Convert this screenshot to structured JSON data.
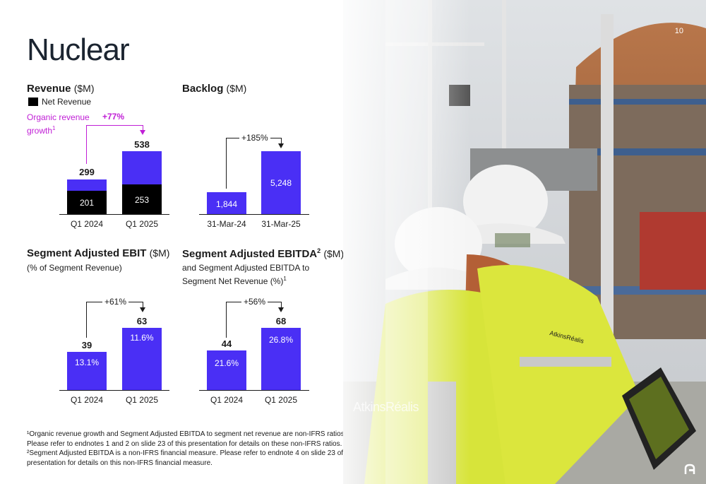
{
  "page": {
    "title": "Nuclear",
    "page_number": "10"
  },
  "revenue": {
    "heading": "Revenue",
    "unit": "($M)",
    "legend": "Net Revenue",
    "organic_label_1": "Organic revenue",
    "organic_label_2": "growth",
    "organic_sup": "1",
    "growth": "+77%",
    "categories": [
      "Q1 2024",
      "Q1 2025"
    ],
    "totals": [
      "299",
      "538"
    ],
    "net": [
      "201",
      "253"
    ]
  },
  "backlog": {
    "heading": "Backlog",
    "unit": "($M)",
    "growth": "+185%",
    "categories": [
      "31-Mar-24",
      "31-Mar-25"
    ],
    "values": [
      "1,844",
      "5,248"
    ]
  },
  "ebit": {
    "heading": "Segment Adjusted EBIT",
    "unit": "($M)",
    "subtitle": "(% of Segment Revenue)",
    "growth": "+61%",
    "categories": [
      "Q1 2024",
      "Q1 2025"
    ],
    "values": [
      "39",
      "63"
    ],
    "margins": [
      "13.1%",
      "11.6%"
    ]
  },
  "ebitda": {
    "heading": "Segment Adjusted EBITDA",
    "sup": "2",
    "unit": "($M)",
    "subtitle_1": "and Segment Adjusted EBITDA to",
    "subtitle_2": "Segment Net Revenue (%)",
    "subtitle_sup": "1",
    "growth": "+56%",
    "categories": [
      "Q1 2024",
      "Q1 2025"
    ],
    "values": [
      "44",
      "68"
    ],
    "margins": [
      "21.6%",
      "26.8%"
    ]
  },
  "chart_data": [
    {
      "type": "bar",
      "title": "Revenue ($M)",
      "categories": [
        "Q1 2024",
        "Q1 2025"
      ],
      "series": [
        {
          "name": "Net Revenue",
          "values": [
            201,
            253
          ]
        }
      ],
      "totals": [
        299,
        538
      ],
      "annotation": "+77%"
    },
    {
      "type": "bar",
      "title": "Backlog ($M)",
      "categories": [
        "31-Mar-24",
        "31-Mar-25"
      ],
      "values": [
        1844,
        5248
      ],
      "annotation": "+185%"
    },
    {
      "type": "bar",
      "title": "Segment Adjusted EBIT ($M)",
      "categories": [
        "Q1 2024",
        "Q1 2025"
      ],
      "values": [
        39,
        63
      ],
      "data_labels": [
        "13.1%",
        "11.6%"
      ],
      "annotation": "+61%"
    },
    {
      "type": "bar",
      "title": "Segment Adjusted EBITDA ($M)",
      "categories": [
        "Q1 2024",
        "Q1 2025"
      ],
      "values": [
        44,
        68
      ],
      "data_labels": [
        "21.6%",
        "26.8%"
      ],
      "annotation": "+56%"
    }
  ],
  "footnote": "¹Organic revenue growth and Segment Adjusted EBITDA to segment net revenue are non-IFRS ratios. Please refer to endnotes 1 and 2 on slide 23 of this presentation for details on these non-IFRS ratios. ²Segment Adjusted EBITDA is a non-IFRS financial measure. Please refer to endnote 4 on slide 23 of this presentation for details on this non-IFRS financial measure.",
  "photo": {
    "logo_text": "AtkinsRéalis",
    "vest_text": "AtkinsRéalis"
  },
  "colors": {
    "bar_blue": "#4a2ff5",
    "growth_magenta": "#c01fd6",
    "net_revenue": "#000000"
  }
}
